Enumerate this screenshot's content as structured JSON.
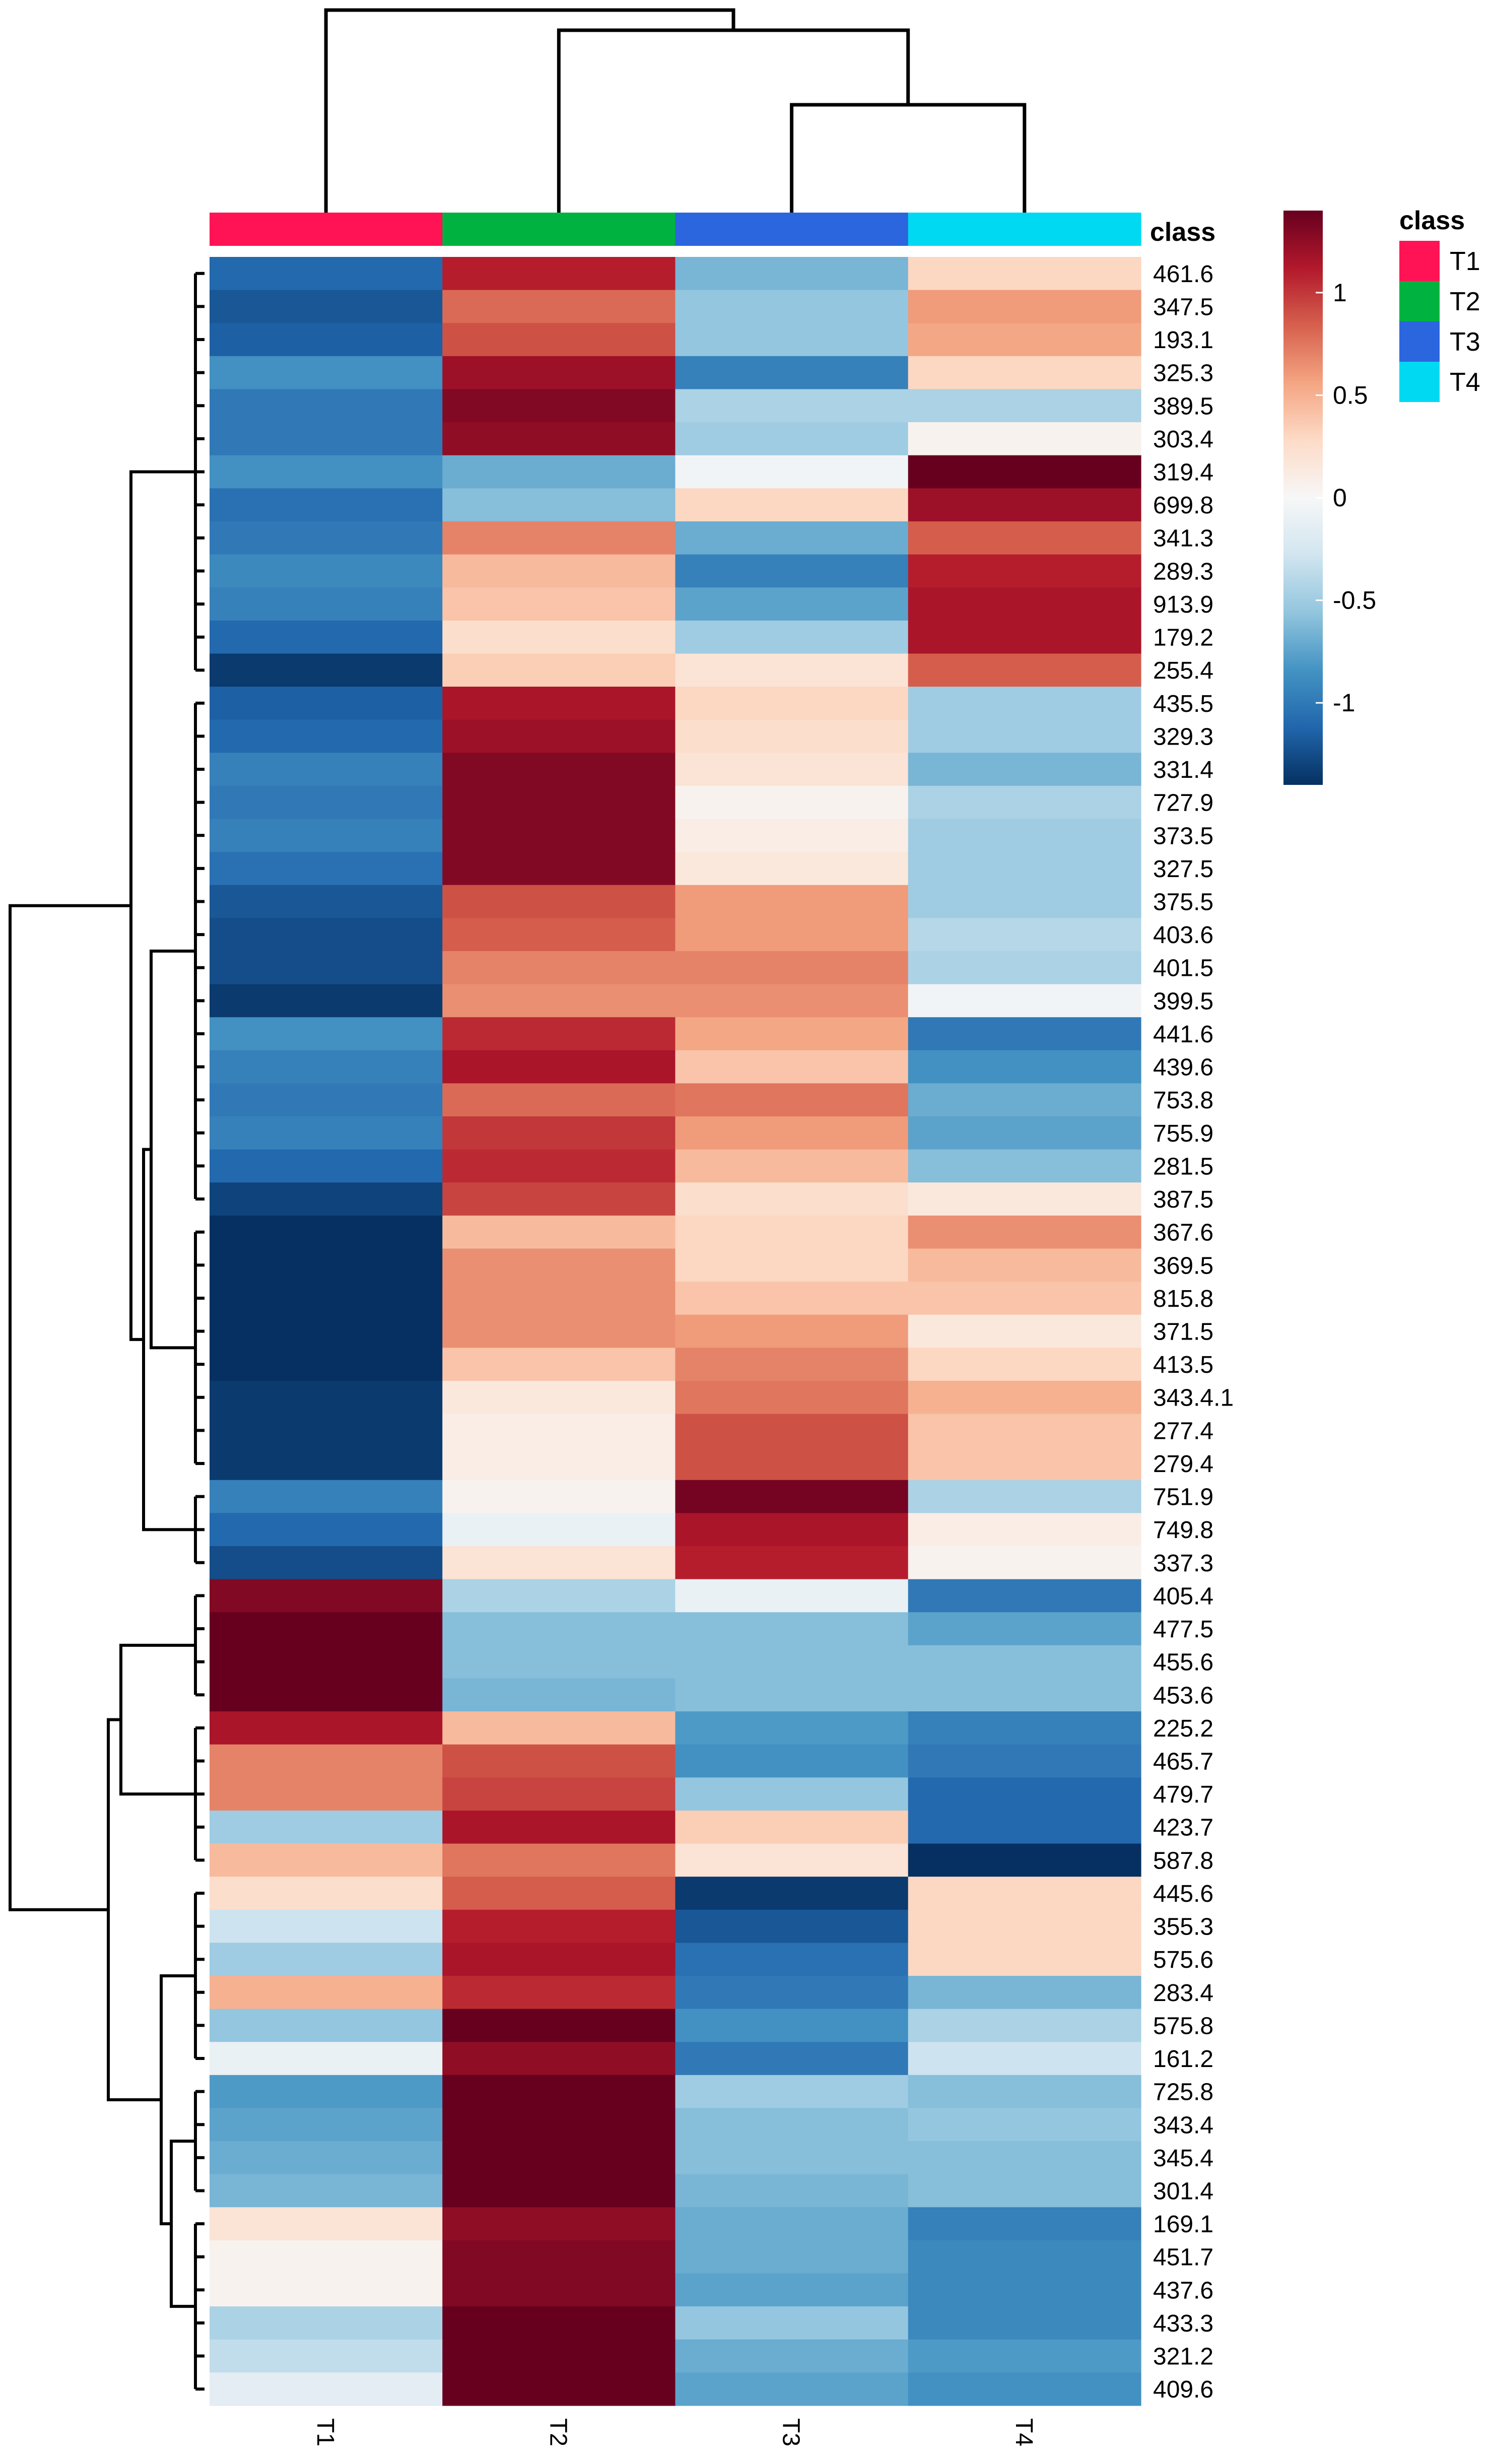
{
  "chart_data": {
    "type": "heatmap",
    "title": "",
    "columns": [
      "T1",
      "T2",
      "T3",
      "T4"
    ],
    "column_classes": [
      "T1",
      "T2",
      "T3",
      "T4"
    ],
    "class_label": "class",
    "legend_title": "class",
    "legend": [
      {
        "label": "T1",
        "color": "#FF1354"
      },
      {
        "label": "T2",
        "color": "#00B341"
      },
      {
        "label": "T3",
        "color": "#2B66DE"
      },
      {
        "label": "T4",
        "color": "#00D9F2"
      }
    ],
    "color_scale": {
      "min": -1.4,
      "max": 1.4,
      "ticks": [
        1,
        0.5,
        0,
        -0.5,
        -1
      ],
      "tick_labels": [
        "1",
        "0.5",
        "0",
        "-0.5",
        "-1"
      ],
      "colors": [
        "#053061",
        "#2166AC",
        "#4393C3",
        "#92C5DE",
        "#D1E5F0",
        "#F7F7F7",
        "#FDDBC7",
        "#F4A582",
        "#D6604D",
        "#B2182B",
        "#67001F"
      ]
    },
    "rows": [
      {
        "label": "461.6",
        "values": [
          -1.1,
          1.1,
          -0.65,
          0.3
        ]
      },
      {
        "label": "347.5",
        "values": [
          -1.2,
          0.8,
          -0.55,
          0.6
        ]
      },
      {
        "label": "193.1",
        "values": [
          -1.15,
          0.9,
          -0.55,
          0.55
        ]
      },
      {
        "label": "325.3",
        "values": [
          -0.85,
          1.2,
          -0.95,
          0.3
        ]
      },
      {
        "label": "389.5",
        "values": [
          -1.0,
          1.3,
          -0.45,
          -0.45
        ]
      },
      {
        "label": "303.4",
        "values": [
          -1.0,
          1.25,
          -0.5,
          0.05
        ]
      },
      {
        "label": "319.4",
        "values": [
          -0.85,
          -0.7,
          -0.05,
          1.4
        ]
      },
      {
        "label": "699.8",
        "values": [
          -1.05,
          -0.6,
          0.3,
          1.2
        ]
      },
      {
        "label": "341.3",
        "values": [
          -1.0,
          0.7,
          -0.7,
          0.85
        ]
      },
      {
        "label": "289.3",
        "values": [
          -0.9,
          0.45,
          -0.95,
          1.1
        ]
      },
      {
        "label": "913.9",
        "values": [
          -0.95,
          0.4,
          -0.75,
          1.15
        ]
      },
      {
        "label": "179.2",
        "values": [
          -1.1,
          0.25,
          -0.5,
          1.15
        ]
      },
      {
        "label": "255.4",
        "values": [
          -1.35,
          0.35,
          0.2,
          0.85
        ]
      },
      {
        "label": "435.5",
        "values": [
          -1.15,
          1.15,
          0.3,
          -0.5
        ]
      },
      {
        "label": "329.3",
        "values": [
          -1.1,
          1.2,
          0.25,
          -0.5
        ]
      },
      {
        "label": "331.4",
        "values": [
          -0.95,
          1.3,
          0.2,
          -0.65
        ]
      },
      {
        "label": "727.9",
        "values": [
          -1.0,
          1.3,
          0.05,
          -0.45
        ]
      },
      {
        "label": "373.5",
        "values": [
          -0.95,
          1.3,
          0.1,
          -0.5
        ]
      },
      {
        "label": "327.5",
        "values": [
          -1.05,
          1.3,
          0.15,
          -0.5
        ]
      },
      {
        "label": "375.5",
        "values": [
          -1.2,
          0.9,
          0.6,
          -0.5
        ]
      },
      {
        "label": "403.6",
        "values": [
          -1.25,
          0.85,
          0.6,
          -0.4
        ]
      },
      {
        "label": "401.5",
        "values": [
          -1.25,
          0.7,
          0.7,
          -0.45
        ]
      },
      {
        "label": "399.5",
        "values": [
          -1.35,
          0.65,
          0.65,
          -0.05
        ]
      },
      {
        "label": "441.6",
        "values": [
          -0.85,
          1.05,
          0.55,
          -1.0
        ]
      },
      {
        "label": "439.6",
        "values": [
          -0.95,
          1.15,
          0.4,
          -0.85
        ]
      },
      {
        "label": "753.8",
        "values": [
          -1.0,
          0.8,
          0.75,
          -0.7
        ]
      },
      {
        "label": "755.9",
        "values": [
          -0.95,
          1.0,
          0.6,
          -0.75
        ]
      },
      {
        "label": "281.5",
        "values": [
          -1.1,
          1.05,
          0.45,
          -0.6
        ]
      },
      {
        "label": "387.5",
        "values": [
          -1.3,
          0.95,
          0.25,
          0.15
        ]
      },
      {
        "label": "367.6",
        "values": [
          -1.45,
          0.45,
          0.3,
          0.65
        ]
      },
      {
        "label": "369.5",
        "values": [
          -1.45,
          0.65,
          0.3,
          0.45
        ]
      },
      {
        "label": "815.8",
        "values": [
          -1.45,
          0.65,
          0.4,
          0.4
        ]
      },
      {
        "label": "371.5",
        "values": [
          -1.45,
          0.65,
          0.6,
          0.15
        ]
      },
      {
        "label": "413.5",
        "values": [
          -1.4,
          0.4,
          0.7,
          0.3
        ]
      },
      {
        "label": "343.4.1",
        "values": [
          -1.35,
          0.15,
          0.75,
          0.5
        ]
      },
      {
        "label": "277.4",
        "values": [
          -1.35,
          0.1,
          0.9,
          0.4
        ]
      },
      {
        "label": "279.4",
        "values": [
          -1.35,
          0.1,
          0.9,
          0.4
        ]
      },
      {
        "label": "751.9",
        "values": [
          -0.95,
          0.05,
          1.35,
          -0.45
        ]
      },
      {
        "label": "749.8",
        "values": [
          -1.1,
          -0.1,
          1.15,
          0.1
        ]
      },
      {
        "label": "337.3",
        "values": [
          -1.25,
          0.2,
          1.1,
          0.05
        ]
      },
      {
        "label": "405.4",
        "values": [
          1.3,
          -0.45,
          -0.1,
          -1.0
        ]
      },
      {
        "label": "477.5",
        "values": [
          1.4,
          -0.6,
          -0.6,
          -0.75
        ]
      },
      {
        "label": "455.6",
        "values": [
          1.4,
          -0.6,
          -0.6,
          -0.6
        ]
      },
      {
        "label": "453.6",
        "values": [
          1.4,
          -0.65,
          -0.6,
          -0.6
        ]
      },
      {
        "label": "225.2",
        "values": [
          1.15,
          0.45,
          -0.8,
          -0.95
        ]
      },
      {
        "label": "465.7",
        "values": [
          0.7,
          0.9,
          -0.85,
          -1.0
        ]
      },
      {
        "label": "479.7",
        "values": [
          0.7,
          0.95,
          -0.55,
          -1.1
        ]
      },
      {
        "label": "423.7",
        "values": [
          -0.5,
          1.15,
          0.35,
          -1.1
        ]
      },
      {
        "label": "587.8",
        "values": [
          0.45,
          0.75,
          0.2,
          -1.4
        ]
      },
      {
        "label": "445.6",
        "values": [
          0.25,
          0.85,
          -1.35,
          0.3
        ]
      },
      {
        "label": "355.3",
        "values": [
          -0.3,
          1.1,
          -1.2,
          0.3
        ]
      },
      {
        "label": "575.6",
        "values": [
          -0.5,
          1.15,
          -1.05,
          0.3
        ]
      },
      {
        "label": "283.4",
        "values": [
          0.5,
          1.05,
          -1.0,
          -0.65
        ]
      },
      {
        "label": "575.8",
        "values": [
          -0.55,
          1.4,
          -0.85,
          -0.45
        ]
      },
      {
        "label": "161.2",
        "values": [
          -0.1,
          1.25,
          -1.0,
          -0.3
        ]
      },
      {
        "label": "725.8",
        "values": [
          -0.8,
          1.4,
          -0.5,
          -0.6
        ]
      },
      {
        "label": "343.4",
        "values": [
          -0.75,
          1.4,
          -0.6,
          -0.55
        ]
      },
      {
        "label": "345.4",
        "values": [
          -0.7,
          1.4,
          -0.6,
          -0.6
        ]
      },
      {
        "label": "301.4",
        "values": [
          -0.65,
          1.4,
          -0.65,
          -0.6
        ]
      },
      {
        "label": "169.1",
        "values": [
          0.2,
          1.25,
          -0.7,
          -0.95
        ]
      },
      {
        "label": "451.7",
        "values": [
          0.05,
          1.3,
          -0.7,
          -0.9
        ]
      },
      {
        "label": "437.6",
        "values": [
          0.05,
          1.3,
          -0.75,
          -0.9
        ]
      },
      {
        "label": "433.3",
        "values": [
          -0.45,
          1.4,
          -0.55,
          -0.9
        ]
      },
      {
        "label": "321.2",
        "values": [
          -0.35,
          1.4,
          -0.7,
          -0.8
        ]
      },
      {
        "label": "409.6",
        "values": [
          -0.15,
          1.4,
          -0.75,
          -0.85
        ]
      }
    ]
  }
}
